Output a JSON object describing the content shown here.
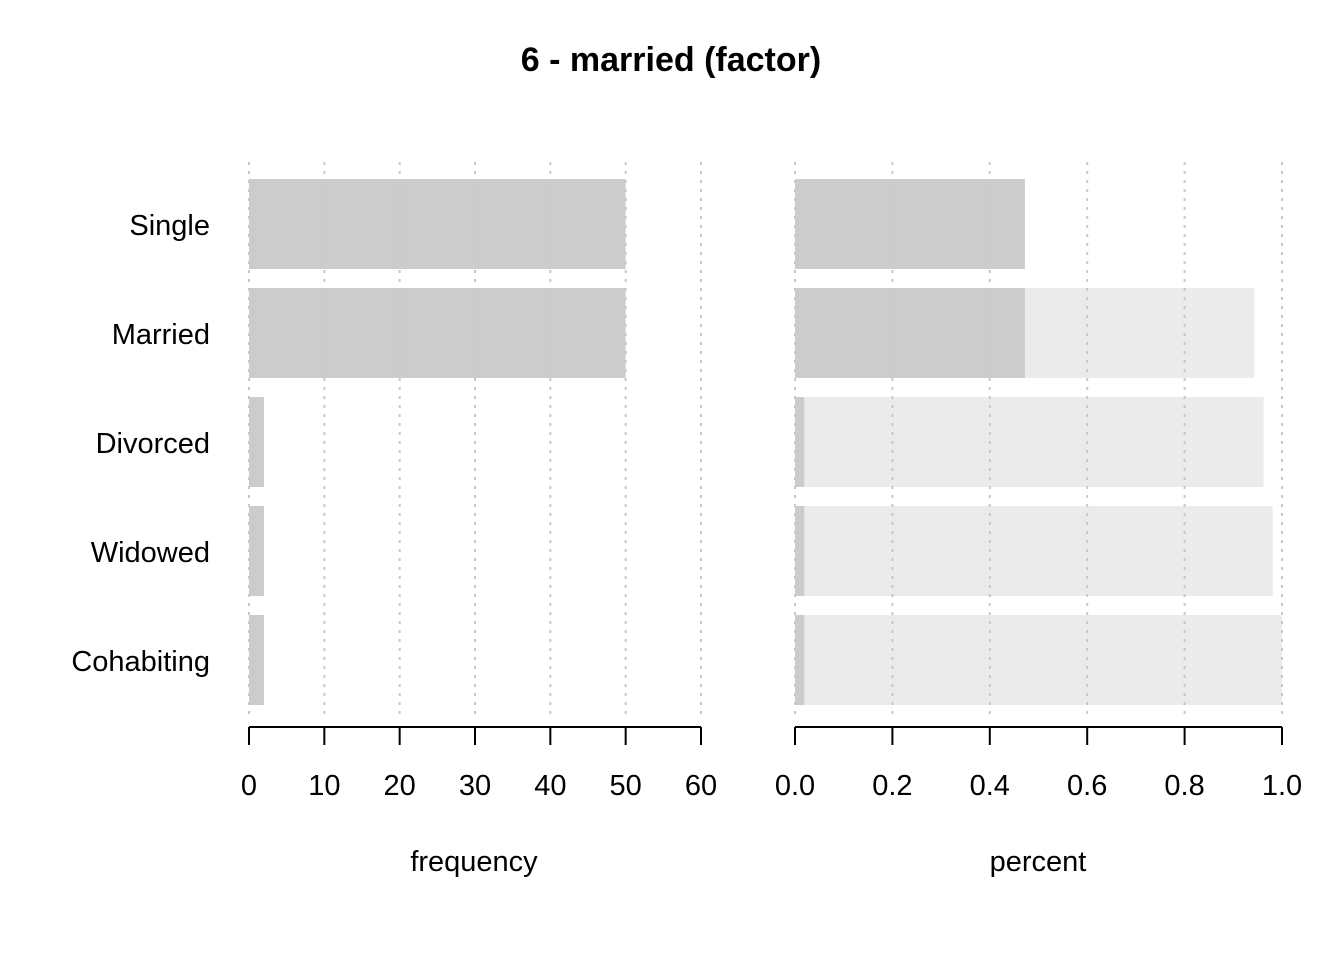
{
  "chart_data": {
    "type": "bar",
    "title": "6 - married (factor)",
    "categories": [
      "Single",
      "Married",
      "Divorced",
      "Widowed",
      "Cohabiting"
    ],
    "colors": {
      "bar": "#cccccc",
      "cumulative": "#ebebeb",
      "grid": "#c8c8c8",
      "axis": "#000000"
    },
    "panels": [
      {
        "name": "frequency",
        "type": "bar",
        "xlabel": "frequency",
        "xlim": [
          0,
          60
        ],
        "ticks": [
          0,
          10,
          20,
          30,
          40,
          50,
          60
        ],
        "tick_labels": [
          "0",
          "10",
          "20",
          "30",
          "40",
          "50",
          "60"
        ],
        "grid": "vertical-dotted",
        "values": [
          50,
          50,
          2,
          2,
          2
        ]
      },
      {
        "name": "percent",
        "type": "bar",
        "xlabel": "percent",
        "xlim": [
          0,
          1
        ],
        "ticks": [
          0,
          0.2,
          0.4,
          0.6,
          0.8,
          1.0
        ],
        "tick_labels": [
          "0.0",
          "0.2",
          "0.4",
          "0.6",
          "0.8",
          "1.0"
        ],
        "grid": "vertical-dotted",
        "values": [
          0.472,
          0.472,
          0.019,
          0.019,
          0.019
        ],
        "cumulative_values": [
          0.472,
          0.943,
          0.962,
          0.981,
          1.0
        ]
      }
    ]
  }
}
